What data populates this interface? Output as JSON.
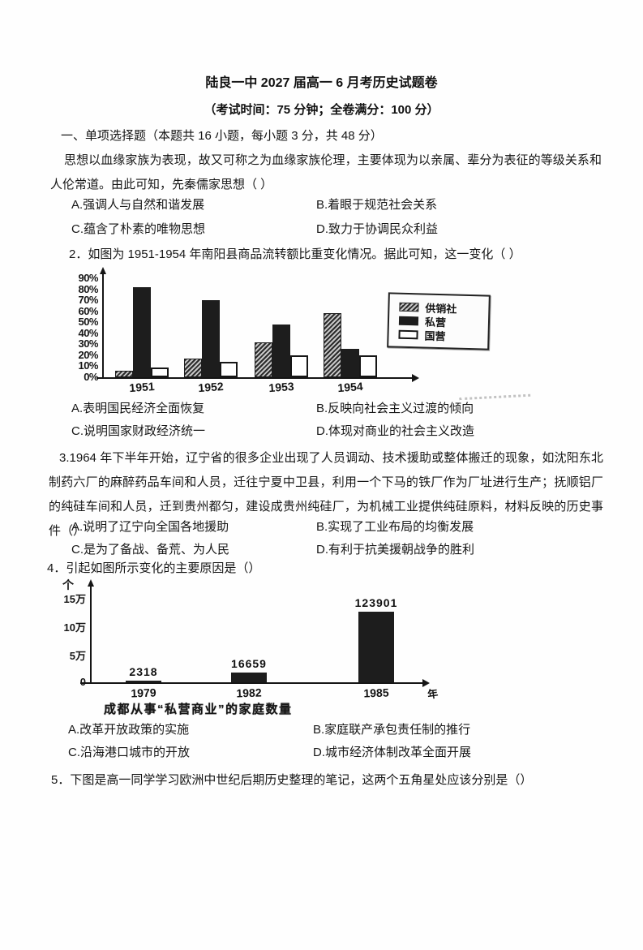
{
  "page": {
    "title": "陆良一中 2027 届高一 6 月考历史试题卷",
    "subtitle": "（考试时间：75 分钟；全卷满分：100 分）",
    "section_heading": "一、单项选择题（本题共 16 小题，每小题 3 分，共 48 分）"
  },
  "questions": [
    {
      "stem": "思想以血缘家族为表现，故又可称之为血缘家族伦理，主要体现为以亲属、辈分为表征的等级关系和人伦常道。由此可知，先秦儒家思想（ ）",
      "options": [
        "A.强调人与自然和谐发展",
        "B.着眼于规范社会关系",
        "C.蕴含了朴素的唯物思想",
        "D.致力于协调民众利益"
      ]
    },
    {
      "stem": "2．如图为 1951-1954 年南阳县商品流转额比重变化情况。据此可知，这一变化（ ）",
      "options": [
        "A.表明国民经济全面恢复",
        "B.反映向社会主义过渡的倾向",
        "C.说明国家财政经济统一",
        "D.体现对商业的社会主义改造"
      ]
    },
    {
      "stem": "3.1964 年下半年开始，辽宁省的很多企业出现了人员调动、技术援助或整体搬迁的现象，如沈阳东北制药六厂的麻醉药品车间和人员，迁往宁夏中卫县，利用一个下马的铁厂作为厂址进行生产；抚顺铝厂的纯硅车间和人员，迁到贵州都匀，建设成贵州纯硅厂，为机械工业提供纯硅原料，材料反映的历史事件（）",
      "options": [
        "A.说明了辽宁向全国各地援助",
        "B.实现了工业布局的均衡发展",
        "C.是为了备战、备荒、为人民",
        "D.有利于抗美援朝战争的胜利"
      ]
    },
    {
      "stem": "4．引起如图所示变化的主要原因是（）",
      "options": [
        "A.改革开放政策的实施",
        "B.家庭联产承包责任制的推行",
        "C.沿海港口城市的开放",
        "D.城市经济体制改革全面开展"
      ]
    },
    {
      "stem": "5．下图是高一同学学习欧洲中世纪后期历史整理的笔记，这两个五角星处应该分别是（）",
      "options": []
    }
  ],
  "chart_data": [
    {
      "type": "bar",
      "title": "",
      "categories": [
        "1951",
        "1952",
        "1953",
        "1954"
      ],
      "series": [
        {
          "name": "供销社",
          "values": [
            6,
            17,
            32,
            58
          ]
        },
        {
          "name": "私营",
          "values": [
            82,
            70,
            48,
            26
          ]
        },
        {
          "name": "国营",
          "values": [
            9,
            14,
            20,
            20
          ]
        }
      ],
      "unit": "%",
      "ylim": [
        0,
        90
      ],
      "yticks": [
        "90%",
        "80%",
        "70%",
        "60%",
        "50%",
        "40%",
        "30%",
        "20%",
        "10%",
        "0%"
      ],
      "legend_position": "right",
      "grid": false
    },
    {
      "type": "bar",
      "title": "成都从事“私营商业”的家庭数量",
      "categories": [
        "1979",
        "1982",
        "1985"
      ],
      "values": [
        2318,
        16659,
        123901
      ],
      "value_labels": [
        "2318",
        "16659",
        "123901"
      ],
      "yticks": [
        "15万",
        "10万",
        "5万",
        "0"
      ],
      "ylim": [
        0,
        150000
      ],
      "unit_label": "个",
      "x_unit_label": "年",
      "grid": false
    }
  ]
}
